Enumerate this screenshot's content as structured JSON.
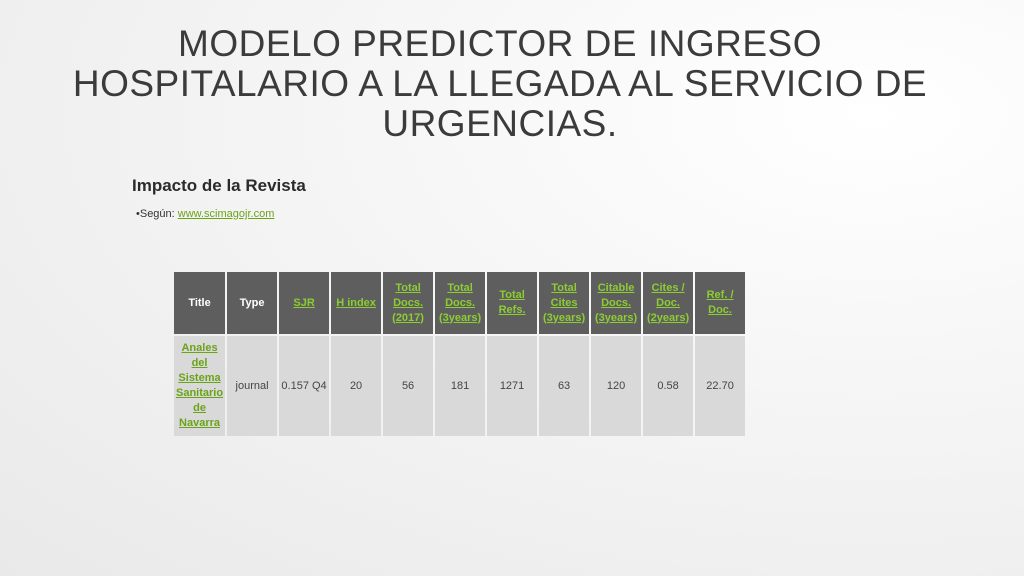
{
  "slide": {
    "title": "MODELO PREDICTOR DE INGRESO HOSPITALARIO A LA LLEGADA AL SERVICIO DE URGENCIAS.",
    "subtitle": "Impacto de la Revista",
    "source_prefix": "•Según: ",
    "source_link": "www.scimagojr.com"
  },
  "table": {
    "headers": [
      "Title",
      "Type",
      "SJR",
      "H index",
      "Total Docs. (2017)",
      "Total Docs. (3years)",
      "Total Refs.",
      "Total Cites (3years)",
      "Citable Docs. (3years)",
      "Cites / Doc. (2years)",
      "Ref. / Doc."
    ],
    "row": [
      "Anales del Sistema Sanitario de Navarra",
      "journal",
      "0.157 Q4",
      "20",
      "56",
      "181",
      "1271",
      "63",
      "120",
      "0.58",
      "22.70"
    ]
  },
  "colors": {
    "header_bg": "#5e5e5e",
    "cell_bg": "#d9d9d9",
    "link_green": "#8ccd32"
  }
}
